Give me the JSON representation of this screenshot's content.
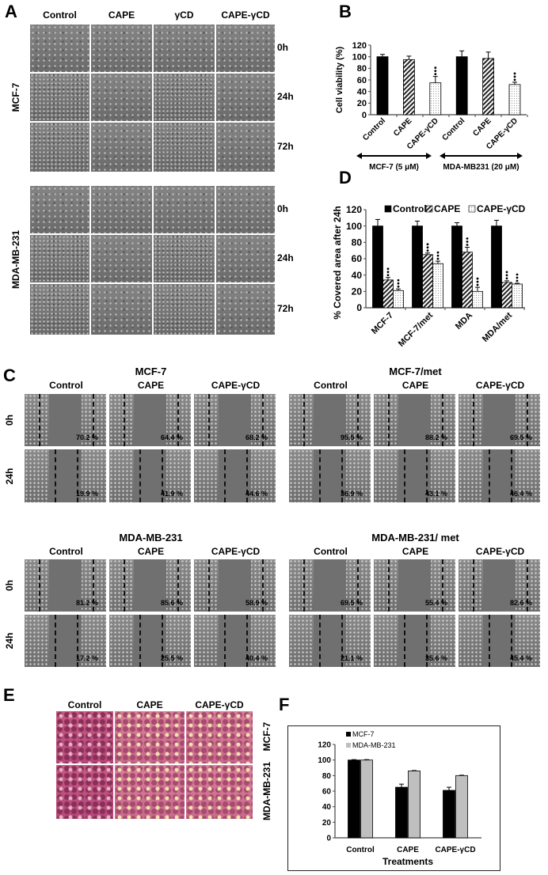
{
  "panel_labels": {
    "a": "A",
    "b": "B",
    "c": "C",
    "d": "D",
    "e": "E",
    "f": "F"
  },
  "panel_a": {
    "columns": [
      "Control",
      "CAPE",
      "γCD",
      "CAPE-γCD"
    ],
    "row_groups": [
      {
        "label": "MCF-7",
        "times": [
          "0h",
          "24h",
          "72h"
        ]
      },
      {
        "label": "MDA-MB-231",
        "times": [
          "0h",
          "24h",
          "72h"
        ]
      }
    ]
  },
  "panel_c": {
    "columns": [
      "Control",
      "CAPE",
      "CAPE-γCD"
    ],
    "times": [
      "0h",
      "24h"
    ],
    "groups": [
      {
        "title": "MCF-7",
        "values": [
          [
            "70.2 %",
            "64.4 %",
            "68.2 %"
          ],
          [
            "19.9 %",
            "41.9 %",
            "44.6 %"
          ]
        ]
      },
      {
        "title": "MCF-7/met",
        "values": [
          [
            "95.5 %",
            "88.2 %",
            "69.5 %"
          ],
          [
            "36.9 %",
            "43.1 %",
            "46.4 %"
          ]
        ]
      },
      {
        "title": "MDA-MB-231",
        "values": [
          [
            "81.2 %",
            "85.6 %",
            "58.9 %"
          ],
          [
            "17.2 %",
            "25.5 %",
            "40.4 %"
          ]
        ]
      },
      {
        "title": "MDA-MB-231/ met",
        "values": [
          [
            "69.5 %",
            "55.4 %",
            "82.6 %"
          ],
          [
            "21.1 %",
            "35.6 %",
            "45.4 %"
          ]
        ]
      }
    ]
  },
  "panel_e": {
    "columns": [
      "Control",
      "CAPE",
      "CAPE-γCD"
    ],
    "rows": [
      "MCF-7",
      "MDA-MB-231"
    ]
  },
  "chart_data": [
    {
      "panel": "B",
      "type": "bar",
      "ylabel": "Cell viability (%)",
      "ylim": [
        0,
        120
      ],
      "yticks": [
        0,
        20,
        40,
        60,
        80,
        100,
        120
      ],
      "categories": [
        "Control",
        "CAPE",
        "CAPE-γCD",
        "Control",
        "CAPE",
        "CAPE-γCD"
      ],
      "values": [
        100,
        95,
        55,
        100,
        97,
        52
      ],
      "errors": [
        4,
        6,
        11,
        10,
        11,
        4
      ],
      "fills": [
        "solid",
        "hatched",
        "dotted",
        "solid",
        "hatched",
        "dotted"
      ],
      "significance": [
        "",
        "",
        "***",
        "",
        "",
        "***"
      ],
      "groups": [
        {
          "label": "MCF-7 (5 μM)"
        },
        {
          "label": "MDA-MB231 (20 μM)"
        }
      ]
    },
    {
      "panel": "D",
      "type": "bar",
      "ylabel": "% Covered area after 24h",
      "ylim": [
        0,
        120
      ],
      "yticks": [
        0,
        20,
        40,
        60,
        80,
        100,
        120
      ],
      "categories": [
        "MCF-7",
        "MCF-7/met",
        "MDA",
        "MDA/met"
      ],
      "legend": "top",
      "series": [
        {
          "name": "Control",
          "fill": "solid",
          "values": [
            100,
            100,
            100,
            100
          ],
          "errors": [
            8,
            6,
            4,
            7
          ],
          "significance": [
            "",
            "",
            "",
            ""
          ]
        },
        {
          "name": "CAPE",
          "fill": "hatched",
          "values": [
            34,
            65,
            68,
            31
          ],
          "errors": [
            3,
            2,
            6,
            2
          ],
          "significance": [
            "***",
            "***",
            "***",
            "***"
          ]
        },
        {
          "name": "CAPE-γCD",
          "fill": "dotted",
          "values": [
            21,
            54,
            20,
            29
          ],
          "errors": [
            2,
            3,
            5,
            1
          ],
          "significance": [
            "***",
            "***",
            "***",
            "***"
          ]
        }
      ]
    },
    {
      "panel": "F",
      "type": "bar",
      "xlabel": "Treatments",
      "ylim": [
        0,
        120
      ],
      "yticks": [
        0,
        20,
        40,
        60,
        80,
        100,
        120
      ],
      "categories": [
        "Control",
        "CAPE",
        "CAPE-γCD"
      ],
      "legend": "top-left",
      "series": [
        {
          "name": "MCF-7",
          "color": "#000000",
          "values": [
            100,
            65,
            61
          ],
          "errors": [
            0.5,
            4,
            4
          ]
        },
        {
          "name": "MDA-MB-231",
          "color": "#bfbfbf",
          "values": [
            100,
            86,
            80
          ],
          "errors": [
            0.5,
            0.5,
            0.5
          ]
        }
      ]
    }
  ]
}
